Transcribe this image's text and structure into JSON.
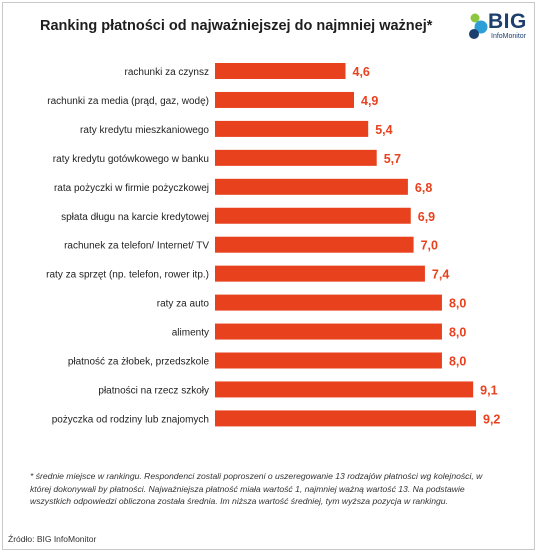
{
  "logo": {
    "name": "BIG",
    "sub": "InfoMonitor"
  },
  "chart_data": {
    "type": "bar",
    "orientation": "horizontal",
    "title": "Ranking płatności od najważniejszej do najmniej ważnej*",
    "categories": [
      "rachunki za czynsz",
      "rachunki za media (prąd, gaz, wodę)",
      "raty kredytu mieszkaniowego",
      "raty kredytu gotówkowego w banku",
      "rata pożyczki w firmie pożyczkowej",
      "spłata długu na karcie kredytowej",
      "rachunek za telefon/ Internet/ TV",
      "raty za sprzęt (np. telefon, rower itp.)",
      "raty za auto",
      "alimenty",
      "płatność za żłobek, przedszkole",
      "płatności na rzecz szkoły",
      "pożyczka od rodziny lub znajomych"
    ],
    "values": [
      4.6,
      4.9,
      5.4,
      5.7,
      6.8,
      6.9,
      7.0,
      7.4,
      8.0,
      8.0,
      8.0,
      9.1,
      9.2
    ],
    "value_labels": [
      "4,6",
      "4,9",
      "5,4",
      "5,7",
      "6,8",
      "6,9",
      "7,0",
      "7,4",
      "8,0",
      "8,0",
      "8,0",
      "9,1",
      "9,2"
    ],
    "xlim": [
      0,
      9.2
    ],
    "bar_color": "#e8411e",
    "label_color": "#e8411e",
    "grid": false,
    "legend": "none"
  },
  "footnote": "* średnie miejsce w rankingu. Respondenci zostali poproszeni o uszeregowanie 13 rodzajów płatności wg kolejności, w której dokonywali by płatności. Najważniejsza płatność miała wartość 1, najmniej ważną wartość 13. Na podstawie wszystkich odpowiedzi obliczona została średnia. Im niższa wartość średniej, tym wyższa pozycja w rankingu.",
  "source": "Źródło: BIG InfoMonitor"
}
